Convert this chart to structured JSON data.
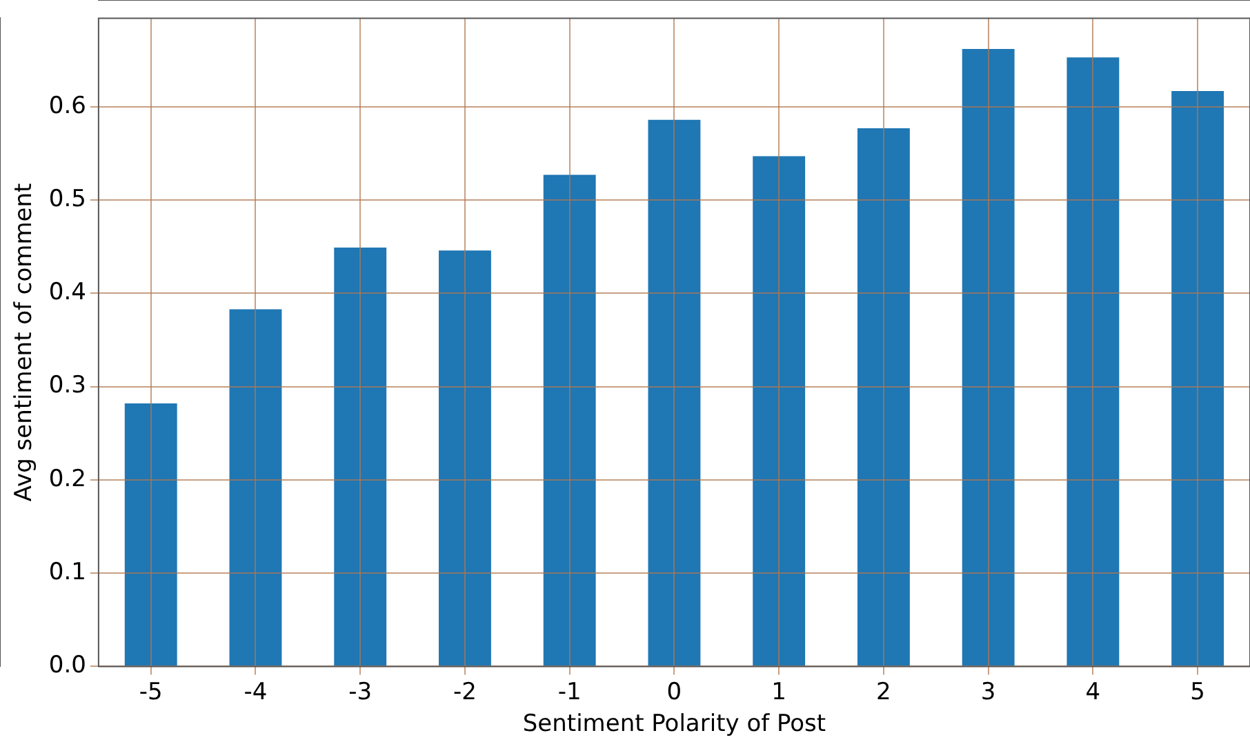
{
  "chart_data": {
    "type": "bar",
    "xlabel": "Sentiment Polarity of Post",
    "ylabel": "Avg sentiment of comment",
    "categories": [
      "-5",
      "-4",
      "-3",
      "-2",
      "-1",
      "0",
      "1",
      "2",
      "3",
      "4",
      "5"
    ],
    "values": [
      0.282,
      0.383,
      0.449,
      0.446,
      0.527,
      0.586,
      0.547,
      0.577,
      0.662,
      0.653,
      0.617
    ],
    "color": "#1f77b4",
    "ylim": [
      0,
      0.695
    ],
    "yticks": [
      {
        "value": 0,
        "label": "0.0"
      },
      {
        "value": 0.1,
        "label": "0.1"
      },
      {
        "value": 0.2,
        "label": "0.2"
      },
      {
        "value": 0.3,
        "label": "0.3"
      },
      {
        "value": 0.4,
        "label": "0.4"
      },
      {
        "value": 0.5,
        "label": "0.5"
      },
      {
        "value": 0.6,
        "label": "0.6"
      }
    ],
    "grid": true,
    "legend": false
  }
}
